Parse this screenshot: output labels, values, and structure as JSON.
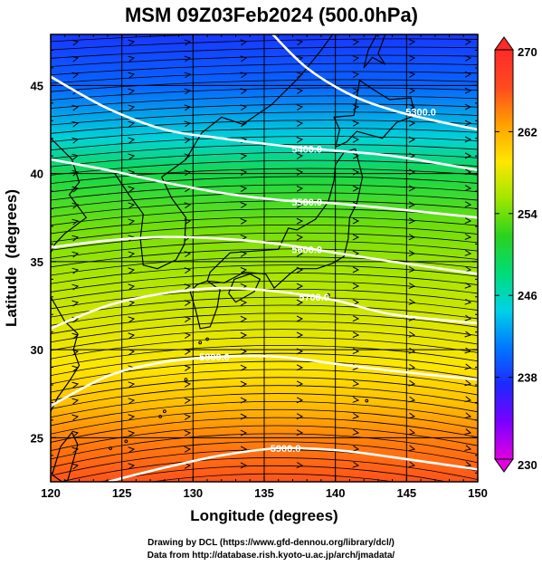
{
  "chart_data": {
    "type": "heatmap",
    "title": "MSM 09Z03Feb2024 (500.0hPa)",
    "xlabel": "Longitude (degrees)",
    "ylabel": "Latitude  (degrees)",
    "xlim": [
      120,
      150
    ],
    "ylim": [
      22.5,
      47.9
    ],
    "x_ticks": [
      120,
      125,
      130,
      135,
      140,
      145,
      150
    ],
    "y_ticks": [
      25,
      30,
      35,
      40,
      45
    ],
    "grid": true,
    "colorbar": {
      "min": 230,
      "max": 270,
      "ticks": [
        230,
        238,
        246,
        254,
        262,
        270
      ],
      "colors": [
        "#e000e0",
        "#7a00ff",
        "#1e28ff",
        "#0078ff",
        "#00d2e6",
        "#00dc78",
        "#2ad21e",
        "#a0e600",
        "#ffe600",
        "#ffa000",
        "#ff4a1e",
        "#ff2a2a"
      ]
    },
    "temperature_field_rows": [
      {
        "lat": 47.9,
        "value": 238
      },
      {
        "lat": 45,
        "value": 240
      },
      {
        "lat": 42,
        "value": 245
      },
      {
        "lat": 40,
        "value": 250
      },
      {
        "lat": 37,
        "value": 254
      },
      {
        "lat": 34,
        "value": 256
      },
      {
        "lat": 31,
        "value": 258
      },
      {
        "lat": 29,
        "value": 259
      },
      {
        "lat": 27,
        "value": 261
      },
      {
        "lat": 25,
        "value": 264
      },
      {
        "lat": 22.5,
        "value": 266
      }
    ],
    "height_contours": [
      {
        "label": "5300.0",
        "points": [
          [
            135.6,
            47.9
          ],
          [
            138,
            46
          ],
          [
            141,
            44.5
          ],
          [
            144,
            43.6
          ],
          [
            147,
            43
          ],
          [
            150,
            42.5
          ]
        ]
      },
      {
        "label": "5400.0",
        "points": [
          [
            120,
            45.5
          ],
          [
            124,
            43.7
          ],
          [
            128,
            42.5
          ],
          [
            132,
            42
          ],
          [
            136,
            41.6
          ],
          [
            140,
            41.3
          ],
          [
            144,
            41
          ],
          [
            150,
            40.2
          ]
        ]
      },
      {
        "label": "5500.0",
        "points": [
          [
            120,
            40.8
          ],
          [
            124,
            40.2
          ],
          [
            128,
            39.5
          ],
          [
            132,
            38.9
          ],
          [
            136,
            38.5
          ],
          [
            140,
            38.3
          ],
          [
            144,
            38
          ],
          [
            150,
            37.5
          ]
        ]
      },
      {
        "label": "5600.0",
        "points": [
          [
            120,
            35.8
          ],
          [
            124,
            36.2
          ],
          [
            128,
            36.4
          ],
          [
            132,
            36.3
          ],
          [
            136,
            36
          ],
          [
            140,
            35.5
          ],
          [
            144,
            35
          ],
          [
            150,
            34.3
          ]
        ]
      },
      {
        "label": "5700.0",
        "points": [
          [
            120,
            31.2
          ],
          [
            124,
            32.5
          ],
          [
            128,
            33.2
          ],
          [
            132,
            33.5
          ],
          [
            136,
            33.3
          ],
          [
            140,
            32.8
          ],
          [
            144,
            32
          ],
          [
            150,
            31.5
          ]
        ]
      },
      {
        "label": "5800.0",
        "points": [
          [
            120,
            26.8
          ],
          [
            124,
            28.5
          ],
          [
            128,
            29.3
          ],
          [
            132,
            29.6
          ],
          [
            136,
            29.6
          ],
          [
            140,
            29.2
          ],
          [
            144,
            28.8
          ],
          [
            150,
            28.3
          ]
        ]
      },
      {
        "label": "5900.0",
        "points": [
          [
            124,
            22.5
          ],
          [
            128,
            23.3
          ],
          [
            132,
            24
          ],
          [
            136,
            24.4
          ],
          [
            140,
            24.3
          ],
          [
            144,
            23.9
          ],
          [
            150,
            23.2
          ]
        ]
      }
    ],
    "contour_labels": [
      {
        "text": "5300.0",
        "lon": 146.0,
        "lat": 43.5
      },
      {
        "text": "5400.0",
        "lon": 138.0,
        "lat": 41.4
      },
      {
        "text": "5500.0",
        "lon": 138.0,
        "lat": 38.4
      },
      {
        "text": "5600.0",
        "lon": 138.0,
        "lat": 35.7
      },
      {
        "text": "5700.0",
        "lon": 138.5,
        "lat": 33.0
      },
      {
        "text": "5800.0",
        "lon": 131.5,
        "lat": 29.6
      },
      {
        "text": "5900.0",
        "lon": 136.5,
        "lat": 24.4
      }
    ]
  },
  "credits": {
    "line1": "Drawing by DCL (https://www.gfd-dennou.org/library/dcl/)",
    "line2": "Data from http://database.rish.kyoto-u.ac.jp/arch/jmadata/"
  }
}
